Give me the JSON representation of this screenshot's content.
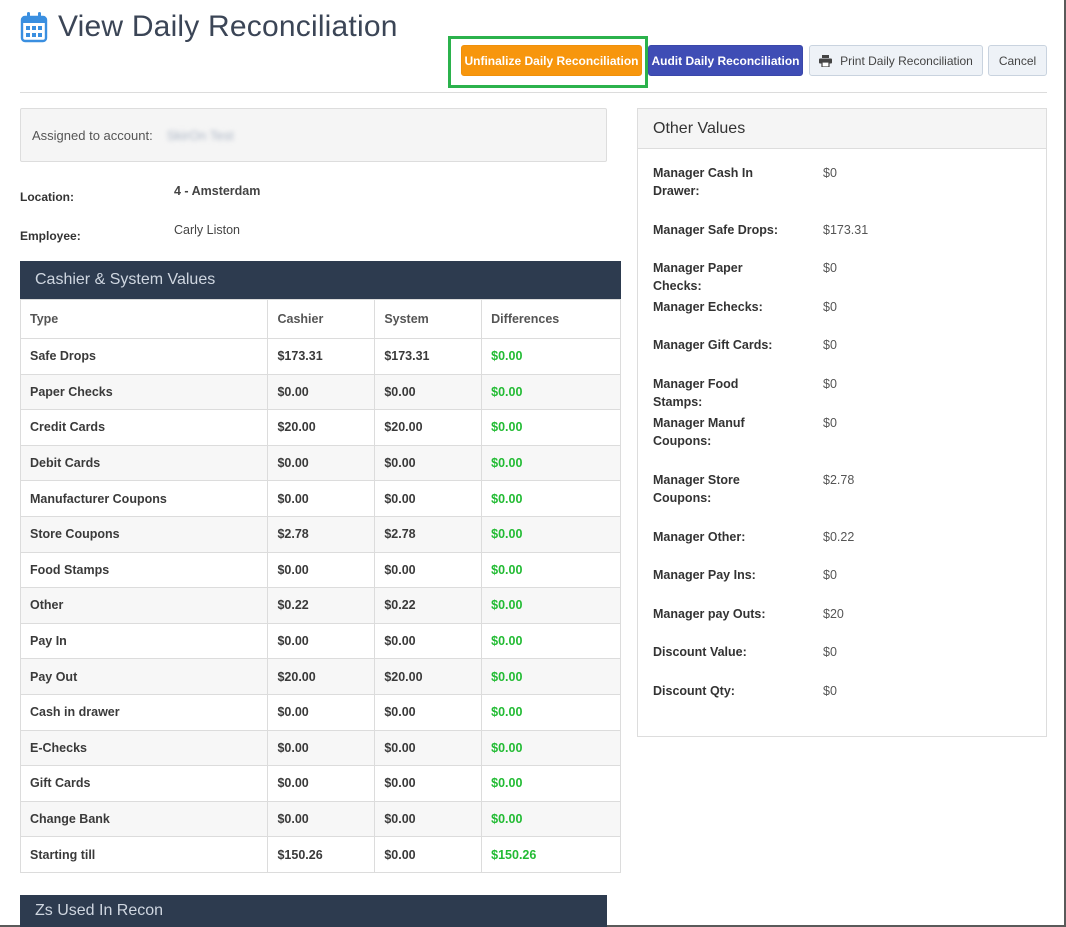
{
  "page": {
    "title": "View Daily Reconciliation"
  },
  "toolbar": {
    "unfinalize_label": "Unfinalize Daily Reconciliation",
    "audit_label": "Audit Daily Reconciliation",
    "print_label": "Print Daily Reconciliation",
    "cancel_label": "Cancel"
  },
  "account": {
    "label": "Assigned to account:",
    "value": "SkirOn Test"
  },
  "info": {
    "location_label": "Location:",
    "location_value": "4 - Amsterdam",
    "employee_label": "Employee:",
    "employee_value": "Carly Liston"
  },
  "cashier_system": {
    "title": "Cashier & System Values",
    "headers": [
      "Type",
      "Cashier",
      "System",
      "Differences"
    ],
    "rows": [
      [
        "Safe Drops",
        "$173.31",
        "$173.31",
        "$0.00"
      ],
      [
        "Paper Checks",
        "$0.00",
        "$0.00",
        "$0.00"
      ],
      [
        "Credit Cards",
        "$20.00",
        "$20.00",
        "$0.00"
      ],
      [
        "Debit Cards",
        "$0.00",
        "$0.00",
        "$0.00"
      ],
      [
        "Manufacturer Coupons",
        "$0.00",
        "$0.00",
        "$0.00"
      ],
      [
        "Store Coupons",
        "$2.78",
        "$2.78",
        "$0.00"
      ],
      [
        "Food Stamps",
        "$0.00",
        "$0.00",
        "$0.00"
      ],
      [
        "Other",
        "$0.22",
        "$0.22",
        "$0.00"
      ],
      [
        "Pay In",
        "$0.00",
        "$0.00",
        "$0.00"
      ],
      [
        "Pay Out",
        "$20.00",
        "$20.00",
        "$0.00"
      ],
      [
        "Cash in drawer",
        "$0.00",
        "$0.00",
        "$0.00"
      ],
      [
        "E-Checks",
        "$0.00",
        "$0.00",
        "$0.00"
      ],
      [
        "Gift Cards",
        "$0.00",
        "$0.00",
        "$0.00"
      ],
      [
        "Change Bank",
        "$0.00",
        "$0.00",
        "$0.00"
      ],
      [
        "Starting till",
        "$150.26",
        "$0.00",
        "$150.26"
      ]
    ]
  },
  "zs_panel": {
    "title": "Zs Used In Recon"
  },
  "other_values": {
    "title": "Other Values",
    "rows": [
      {
        "label": "Manager Cash In Drawer:",
        "value": "$0"
      },
      {
        "label": "Manager Safe Drops:",
        "value": "$173.31"
      },
      {
        "label": "Manager Paper Checks:",
        "value": "$0"
      },
      {
        "label": "Manager Echecks:",
        "value": "$0"
      },
      {
        "label": "Manager Gift Cards:",
        "value": "$0"
      },
      {
        "label": "Manager Food Stamps:",
        "value": "$0"
      },
      {
        "label": "Manager Manuf Coupons:",
        "value": "$0"
      },
      {
        "label": "Manager Store Coupons:",
        "value": "$2.78"
      },
      {
        "label": "Manager Other:",
        "value": "$0.22"
      },
      {
        "label": "Manager Pay Ins:",
        "value": "$0"
      },
      {
        "label": "Manager pay Outs:",
        "value": "$20"
      },
      {
        "label": "Discount Value:",
        "value": "$0"
      },
      {
        "label": "Discount Qty:",
        "value": "$0"
      }
    ]
  },
  "colors": {
    "accent_orange": "#f7960d",
    "accent_indigo": "#3f4db5",
    "panel_dark": "#2d3b4f",
    "difference_green": "#22bb33",
    "highlight_green": "#2bb24c"
  }
}
